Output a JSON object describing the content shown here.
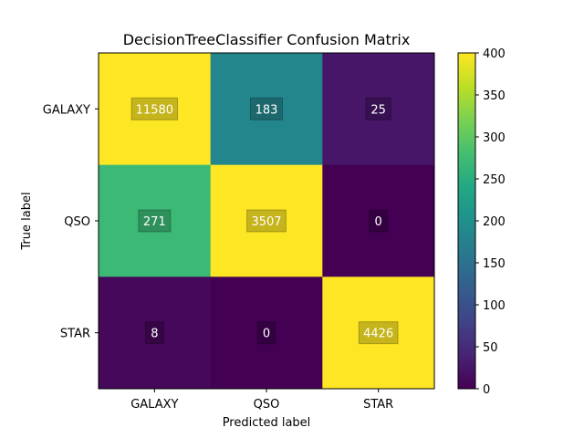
{
  "chart_data": {
    "type": "heatmap",
    "title": "DecisionTreeClassifier Confusion Matrix",
    "xlabel": "Predicted label",
    "ylabel": "True label",
    "x_categories": [
      "GALAXY",
      "QSO",
      "STAR"
    ],
    "y_categories": [
      "GALAXY",
      "QSO",
      "STAR"
    ],
    "values": [
      [
        11580,
        183,
        25
      ],
      [
        271,
        3507,
        0
      ],
      [
        8,
        0,
        4426
      ]
    ],
    "color_range": [
      0,
      400
    ],
    "colormap": "viridis",
    "colorbar_ticks": [
      "0",
      "50",
      "100",
      "150",
      "200",
      "250",
      "300",
      "350",
      "400"
    ],
    "grid": false
  }
}
